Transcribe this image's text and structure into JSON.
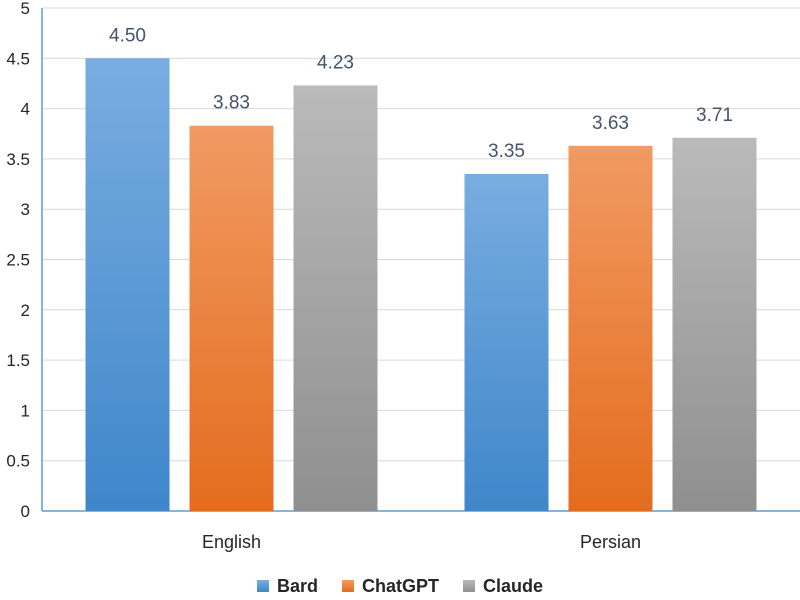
{
  "chart_data": {
    "type": "bar",
    "categories": [
      "English",
      "Persian"
    ],
    "series": [
      {
        "name": "Bard",
        "values": [
          4.5,
          3.35
        ],
        "labels": [
          "4.50",
          "3.35"
        ],
        "color": "#5B9BD5"
      },
      {
        "name": "ChatGPT",
        "values": [
          3.83,
          3.63
        ],
        "labels": [
          "3.83",
          "3.63"
        ],
        "color": "#ED7D31"
      },
      {
        "name": "Claude",
        "values": [
          4.23,
          3.71
        ],
        "labels": [
          "4.23",
          "3.71"
        ],
        "color": "#A5A5A5"
      }
    ],
    "ylim": [
      0,
      5
    ],
    "yticks": [
      "0",
      "0.5",
      "1",
      "1.5",
      "2",
      "2.5",
      "3",
      "3.5",
      "4",
      "4.5",
      "5"
    ],
    "grid": true,
    "legend_position": "bottom"
  }
}
